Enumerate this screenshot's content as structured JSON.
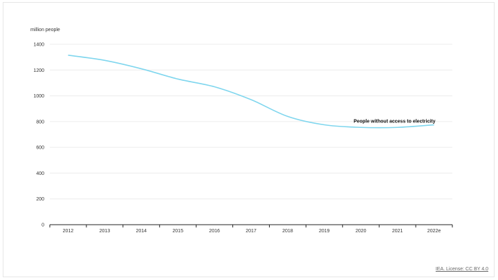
{
  "chart_data": {
    "type": "line",
    "title": "",
    "xlabel": "",
    "ylabel": "million people",
    "categories": [
      "2012",
      "2013",
      "2014",
      "2015",
      "2016",
      "2017",
      "2018",
      "2019",
      "2020",
      "2021",
      "2022e"
    ],
    "y_ticks": [
      0,
      200,
      400,
      600,
      800,
      1000,
      1200,
      1400
    ],
    "ylim": [
      0,
      1400
    ],
    "grid": true,
    "series": [
      {
        "name": "People without access to electricity",
        "color": "#7fd6ee",
        "values": [
          1315,
          1275,
          1210,
          1130,
          1070,
          970,
          840,
          775,
          755,
          755,
          775
        ]
      }
    ]
  },
  "source": {
    "label": "IEA. License: CC BY 4.0"
  }
}
